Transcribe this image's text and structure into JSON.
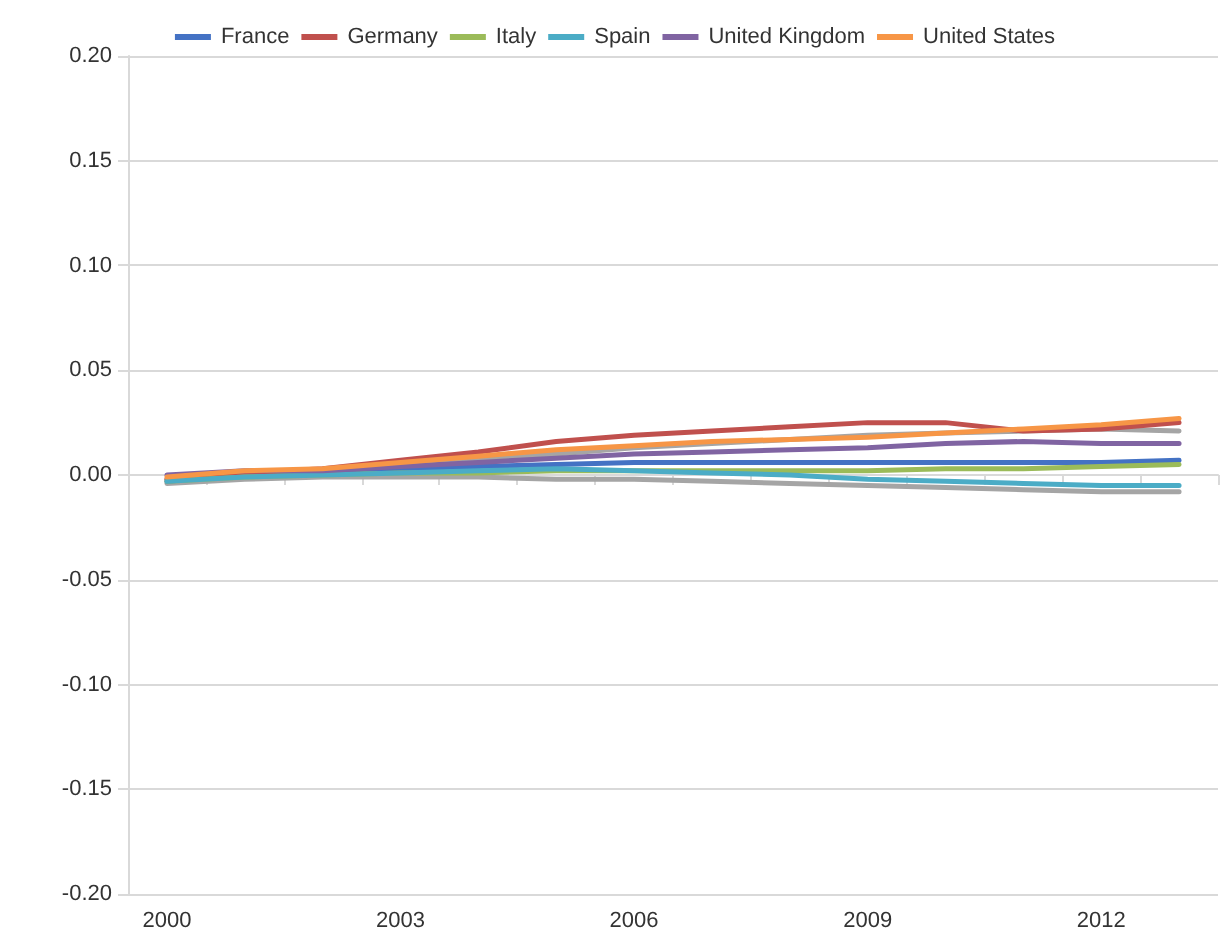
{
  "chart_data": {
    "type": "line",
    "categories": [
      "2000",
      null,
      null,
      "2003",
      null,
      null,
      "2006",
      null,
      null,
      "2009",
      null,
      null,
      "2012",
      null
    ],
    "ylim": [
      -0.2,
      0.2
    ],
    "yticks": [
      {
        "value": -0.2,
        "label": "-0.20"
      },
      {
        "value": -0.15,
        "label": "-0.15"
      },
      {
        "value": -0.1,
        "label": "-0.10"
      },
      {
        "value": -0.05,
        "label": "-0.05"
      },
      {
        "value": 0,
        "label": "0.00"
      },
      {
        "value": 0.05,
        "label": "0.05"
      },
      {
        "value": 0.1,
        "label": "0.10"
      },
      {
        "value": 0.15,
        "label": "0.15"
      },
      {
        "value": 0.2,
        "label": "0.20"
      }
    ],
    "grid": "y",
    "legend": "top",
    "marker": "none",
    "line_style": "solid",
    "series": [
      {
        "color": "#a5a5a5",
        "values": [
          -0.002,
          0.001,
          0.002,
          0.004,
          0.007,
          0.01,
          0.013,
          0.015,
          0.017,
          0.019,
          0.02,
          0.021,
          0.022,
          0.021
        ]
      },
      {
        "color": "#a5a5a5",
        "values": [
          -0.004,
          -0.002,
          -0.001,
          -0.001,
          -0.001,
          -0.002,
          -0.002,
          -0.003,
          -0.004,
          -0.005,
          -0.006,
          -0.007,
          -0.008,
          -0.008
        ]
      },
      {
        "name": "France",
        "color": "#4472c4",
        "values": [
          -0.003,
          0.0,
          0.001,
          0.003,
          0.004,
          0.005,
          0.006,
          0.006,
          0.006,
          0.006,
          0.006,
          0.006,
          0.006,
          0.007
        ]
      },
      {
        "name": "Germany",
        "color": "#c0504d",
        "values": [
          -0.002,
          0.001,
          0.003,
          0.007,
          0.011,
          0.016,
          0.019,
          0.021,
          0.023,
          0.025,
          0.025,
          0.021,
          0.022,
          0.025
        ]
      },
      {
        "name": "Italy",
        "color": "#9bbb59",
        "values": [
          -0.003,
          -0.001,
          0.0,
          0.001,
          0.001,
          0.002,
          0.002,
          0.002,
          0.002,
          0.002,
          0.003,
          0.003,
          0.004,
          0.005
        ]
      },
      {
        "name": "Spain",
        "color": "#4bacc6",
        "values": [
          -0.003,
          -0.001,
          0.0,
          0.001,
          0.002,
          0.003,
          0.002,
          0.001,
          0.0,
          -0.002,
          -0.003,
          -0.004,
          -0.005,
          -0.005
        ]
      },
      {
        "name": "United Kingdom",
        "color": "#8064a2",
        "values": [
          0.0,
          0.002,
          0.002,
          0.004,
          0.006,
          0.008,
          0.01,
          0.011,
          0.012,
          0.013,
          0.015,
          0.016,
          0.015,
          0.015
        ]
      },
      {
        "name": "United States",
        "color": "#f79646",
        "values": [
          -0.001,
          0.002,
          0.003,
          0.006,
          0.009,
          0.012,
          0.014,
          0.016,
          0.017,
          0.018,
          0.02,
          0.022,
          0.024,
          0.027
        ]
      }
    ]
  }
}
